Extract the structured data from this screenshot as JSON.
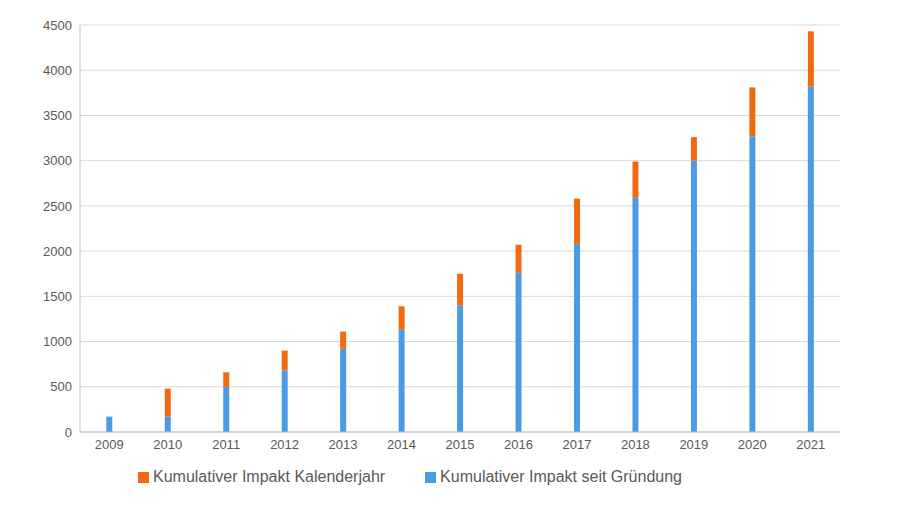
{
  "chart_data": {
    "type": "bar",
    "categories": [
      "2009",
      "2010",
      "2011",
      "2012",
      "2013",
      "2014",
      "2015",
      "2016",
      "2017",
      "2018",
      "2019",
      "2020",
      "2021"
    ],
    "series": [
      {
        "name": "Kumulativer Impakt seit Gründung",
        "color": "#4a9be6",
        "values": [
          170,
          170,
          500,
          680,
          920,
          1130,
          1400,
          1760,
          2080,
          2590,
          3000,
          3270,
          3820
        ]
      },
      {
        "name": "Kumulativer Impakt Kalenderjahr",
        "color": "#f26a0f",
        "values": [
          0,
          310,
          160,
          220,
          190,
          260,
          350,
          310,
          500,
          400,
          260,
          540,
          610
        ]
      }
    ],
    "ylim": [
      0,
      4500
    ],
    "yticks": [
      0,
      500,
      1000,
      1500,
      2000,
      2500,
      3000,
      3500,
      4000,
      4500
    ],
    "grid": true,
    "stacked": true,
    "legend": "bottom"
  }
}
